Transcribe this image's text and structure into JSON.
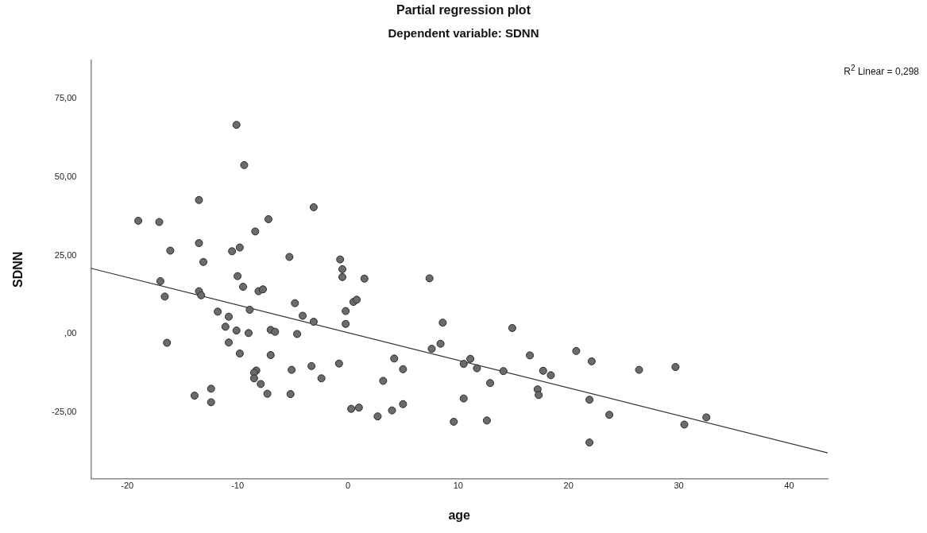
{
  "chart_data": {
    "type": "scatter",
    "title": "Partial regression plot",
    "subtitle": "Dependent variable: SDNN",
    "xlabel": "age",
    "ylabel": "SDNN",
    "annotations": [
      "R$^{2}$ Linear = 0,298"
    ],
    "xlim": [
      -23.3,
      43.5
    ],
    "xticks": [
      -20,
      -10,
      0,
      10,
      20,
      30,
      40
    ],
    "ylim": [
      -46,
      87
    ],
    "yticks": [
      {
        "value": -25,
        "label": "-25,00"
      },
      {
        "value": 0,
        "label": ",00"
      },
      {
        "value": 25,
        "label": "25,00"
      },
      {
        "value": 50,
        "label": "50,00"
      },
      {
        "value": 75,
        "label": "75,00"
      }
    ],
    "grid": false,
    "legend": false,
    "marker": "circle",
    "series": [
      {
        "type": "scatter",
        "color": "#6b6b6b",
        "x": [
          -19.0,
          -17.1,
          -16.1,
          -17.0,
          -16.6,
          -16.4,
          -13.5,
          -13.5,
          -13.1,
          -13.5,
          -13.3,
          -13.9,
          -12.4,
          -12.4,
          -11.8,
          -10.8,
          -11.1,
          -10.1,
          -10.8,
          -9.8,
          -10.1,
          -9.4,
          -10.5,
          -9.8,
          -10.0,
          -9.5,
          -8.4,
          -7.2,
          -8.9,
          -9.0,
          -8.1,
          -7.7,
          -7.0,
          -6.6,
          -7.0,
          -8.3,
          -8.5,
          -8.5,
          -7.9,
          -7.3,
          -5.3,
          -4.8,
          -4.1,
          -4.6,
          -5.1,
          -5.2,
          -3.1,
          -3.1,
          -3.3,
          -2.4,
          -0.7,
          -0.5,
          -0.5,
          1.5,
          0.5,
          0.8,
          -0.2,
          -0.2,
          -0.8,
          0.3,
          1.0,
          2.7,
          3.2,
          4.0,
          4.2,
          5.0,
          5.0,
          7.4,
          7.6,
          8.6,
          8.4,
          9.6,
          10.5,
          11.1,
          11.7,
          10.5,
          12.6,
          12.9,
          14.1,
          14.9,
          16.5,
          17.2,
          17.3,
          17.7,
          18.4,
          20.7,
          22.1,
          21.9,
          21.9,
          23.7,
          26.4,
          29.7,
          30.5,
          32.5
        ],
        "values": [
          36.0,
          35.6,
          26.5,
          16.8,
          11.9,
          -2.8,
          42.6,
          28.9,
          22.9,
          13.6,
          12.3,
          -19.6,
          -17.4,
          -21.7,
          7.1,
          5.5,
          2.3,
          1.1,
          -2.7,
          -6.2,
          66.5,
          53.7,
          26.3,
          27.5,
          18.4,
          15.0,
          32.6,
          36.5,
          7.7,
          0.3,
          13.6,
          14.2,
          1.3,
          0.7,
          -6.7,
          -11.6,
          -12.3,
          -14.1,
          -15.9,
          -19.0,
          24.5,
          9.8,
          5.8,
          0.0,
          -11.4,
          -19.1,
          40.3,
          3.9,
          -10.2,
          -14.1,
          23.7,
          20.6,
          18.1,
          17.6,
          10.2,
          10.9,
          7.3,
          3.2,
          -9.4,
          -23.8,
          -23.4,
          -26.2,
          -14.9,
          -24.3,
          -7.8,
          -11.2,
          -22.3,
          17.7,
          -4.7,
          3.6,
          -3.1,
          -27.9,
          -9.5,
          -7.9,
          -10.9,
          -20.5,
          -27.5,
          -15.6,
          -11.8,
          1.9,
          -6.8,
          -17.6,
          -19.4,
          -11.7,
          -13.1,
          -5.4,
          -8.7,
          -20.9,
          -34.5,
          -25.7,
          -11.4,
          -10.5,
          -28.8,
          -26.5
        ]
      },
      {
        "type": "line",
        "color": "#333333",
        "marker": "none",
        "x": [
          -23.3,
          43.5
        ],
        "values": [
          20.9,
          -37.8
        ]
      }
    ]
  }
}
